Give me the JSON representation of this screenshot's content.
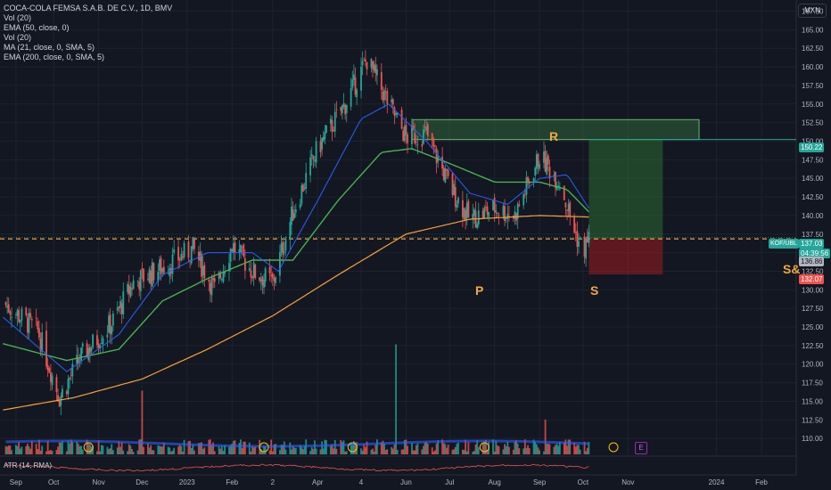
{
  "legend": {
    "title": "COCA-COLA FEMSA S.A.B. DE C.V., 1D, BMV",
    "lines": [
      "Vol (20)",
      "EMA (50, close, 0)",
      "Vol (20)",
      "MA (21, close, 0, SMA, 5)",
      "EMA (200, close, 0, SMA, 5)"
    ],
    "atr": "ATR (14, RMA)"
  },
  "currency": "MXN",
  "symbol_tag": "KOF/UBL",
  "price_tags": {
    "target": "150.22",
    "last": "137.03",
    "countdown": "04:39:56",
    "entry": "136.86",
    "stop": "132.07"
  },
  "annotations": {
    "R": "R",
    "P": "P",
    "S": "S",
    "S_and": "S&"
  },
  "earnings_markers": [
    "E",
    "E"
  ],
  "colors": {
    "up": "#26a69a",
    "down": "#ef5350",
    "ema50": "#4caf50",
    "ma21": "#2962ff",
    "ema200": "#f7a13a",
    "annotation": "#f0a842",
    "target_zone": "#1b5e20",
    "stop_zone": "#7f1d1d"
  },
  "chart_data": {
    "type": "candlestick",
    "y_ticks": [
      110.0,
      112.5,
      115.0,
      117.5,
      120.0,
      122.5,
      125.0,
      127.5,
      130.0,
      132.5,
      135.0,
      137.5,
      140.0,
      142.5,
      145.0,
      147.5,
      150.0,
      152.5,
      155.0,
      157.5,
      160.0,
      162.5,
      165.0,
      167.5
    ],
    "ylim": [
      107.5,
      169.0
    ],
    "x_ticks": [
      "Sep",
      "Oct",
      "Nov",
      "Dec",
      "2023",
      "Feb",
      "2",
      "Apr",
      "4",
      "Jun",
      "Jul",
      "Aug",
      "Sep",
      "Oct",
      "Nov",
      "2024",
      "Feb"
    ],
    "price_path": [
      [
        "2022-09-01",
        127.5
      ],
      [
        "2022-09-20",
        124.5
      ],
      [
        "2022-10-05",
        115.5
      ],
      [
        "2022-10-20",
        121.0
      ],
      [
        "2022-11-10",
        125.5
      ],
      [
        "2022-11-25",
        131.0
      ],
      [
        "2022-12-15",
        133.0
      ],
      [
        "2023-01-05",
        135.5
      ],
      [
        "2023-01-20",
        130.0
      ],
      [
        "2023-02-01",
        136.0
      ],
      [
        "2023-02-15",
        132.5
      ],
      [
        "2023-03-01",
        131.0
      ],
      [
        "2023-03-15",
        140.5
      ],
      [
        "2023-04-01",
        149.0
      ],
      [
        "2023-04-20",
        155.0
      ],
      [
        "2023-05-05",
        161.0
      ],
      [
        "2023-05-20",
        155.0
      ],
      [
        "2023-06-01",
        150.5
      ],
      [
        "2023-06-15",
        151.0
      ],
      [
        "2023-07-01",
        144.0
      ],
      [
        "2023-07-15",
        139.5
      ],
      [
        "2023-08-01",
        141.0
      ],
      [
        "2023-08-15",
        140.0
      ],
      [
        "2023-09-01",
        148.0
      ],
      [
        "2023-09-15",
        144.5
      ],
      [
        "2023-09-25",
        138.0
      ],
      [
        "2023-10-01",
        135.0
      ],
      [
        "2023-10-05",
        137.03
      ]
    ],
    "ma21_path": [
      [
        "2022-09-01",
        125.5
      ],
      [
        "2022-10-10",
        119.0
      ],
      [
        "2022-11-15",
        124.0
      ],
      [
        "2022-12-15",
        132.0
      ],
      [
        "2023-01-15",
        135.0
      ],
      [
        "2023-02-15",
        135.0
      ],
      [
        "2023-03-05",
        132.5
      ],
      [
        "2023-04-01",
        142.0
      ],
      [
        "2023-05-01",
        153.0
      ],
      [
        "2023-05-20",
        155.0
      ],
      [
        "2023-06-15",
        150.0
      ],
      [
        "2023-07-15",
        143.0
      ],
      [
        "2023-08-10",
        141.5
      ],
      [
        "2023-09-01",
        145.0
      ],
      [
        "2023-09-20",
        145.5
      ],
      [
        "2023-10-05",
        141.0
      ]
    ],
    "ema50_path": [
      [
        "2022-09-01",
        122.5
      ],
      [
        "2022-10-10",
        120.5
      ],
      [
        "2022-11-15",
        122.0
      ],
      [
        "2022-12-15",
        128.5
      ],
      [
        "2023-01-15",
        131.5
      ],
      [
        "2023-02-15",
        134.0
      ],
      [
        "2023-03-15",
        134.0
      ],
      [
        "2023-04-15",
        142.0
      ],
      [
        "2023-05-15",
        148.5
      ],
      [
        "2023-06-05",
        149.0
      ],
      [
        "2023-07-01",
        147.0
      ],
      [
        "2023-08-01",
        144.5
      ],
      [
        "2023-09-01",
        144.5
      ],
      [
        "2023-09-20",
        143.5
      ],
      [
        "2023-10-05",
        140.5
      ]
    ],
    "ema200_path": [
      [
        "2022-09-01",
        114.0
      ],
      [
        "2022-10-15",
        115.5
      ],
      [
        "2022-12-01",
        118.0
      ],
      [
        "2023-01-15",
        122.0
      ],
      [
        "2023-03-01",
        126.5
      ],
      [
        "2023-04-15",
        132.0
      ],
      [
        "2023-06-01",
        137.5
      ],
      [
        "2023-07-15",
        139.5
      ],
      [
        "2023-09-01",
        140.0
      ],
      [
        "2023-10-05",
        139.8
      ]
    ],
    "support_level": 136.86,
    "resistance_zone": {
      "from": "2023-06-05",
      "to": "2023-12-20",
      "low": 150.22,
      "high": 152.9
    },
    "position": {
      "from": "2023-10-05",
      "to": "2023-11-25",
      "entry": 136.86,
      "target": 150.22,
      "stop": 132.07
    },
    "volume_spikes": [
      [
        "2022-12-01",
        0.55
      ],
      [
        "2023-05-25",
        0.95
      ],
      [
        "2023-09-05",
        0.3
      ]
    ],
    "annotation_points": {
      "R": [
        "2023-09-01",
        151.5
      ],
      "P": [
        "2023-07-20",
        130.5
      ],
      "S": [
        "2023-10-01",
        130.5
      ]
    }
  }
}
